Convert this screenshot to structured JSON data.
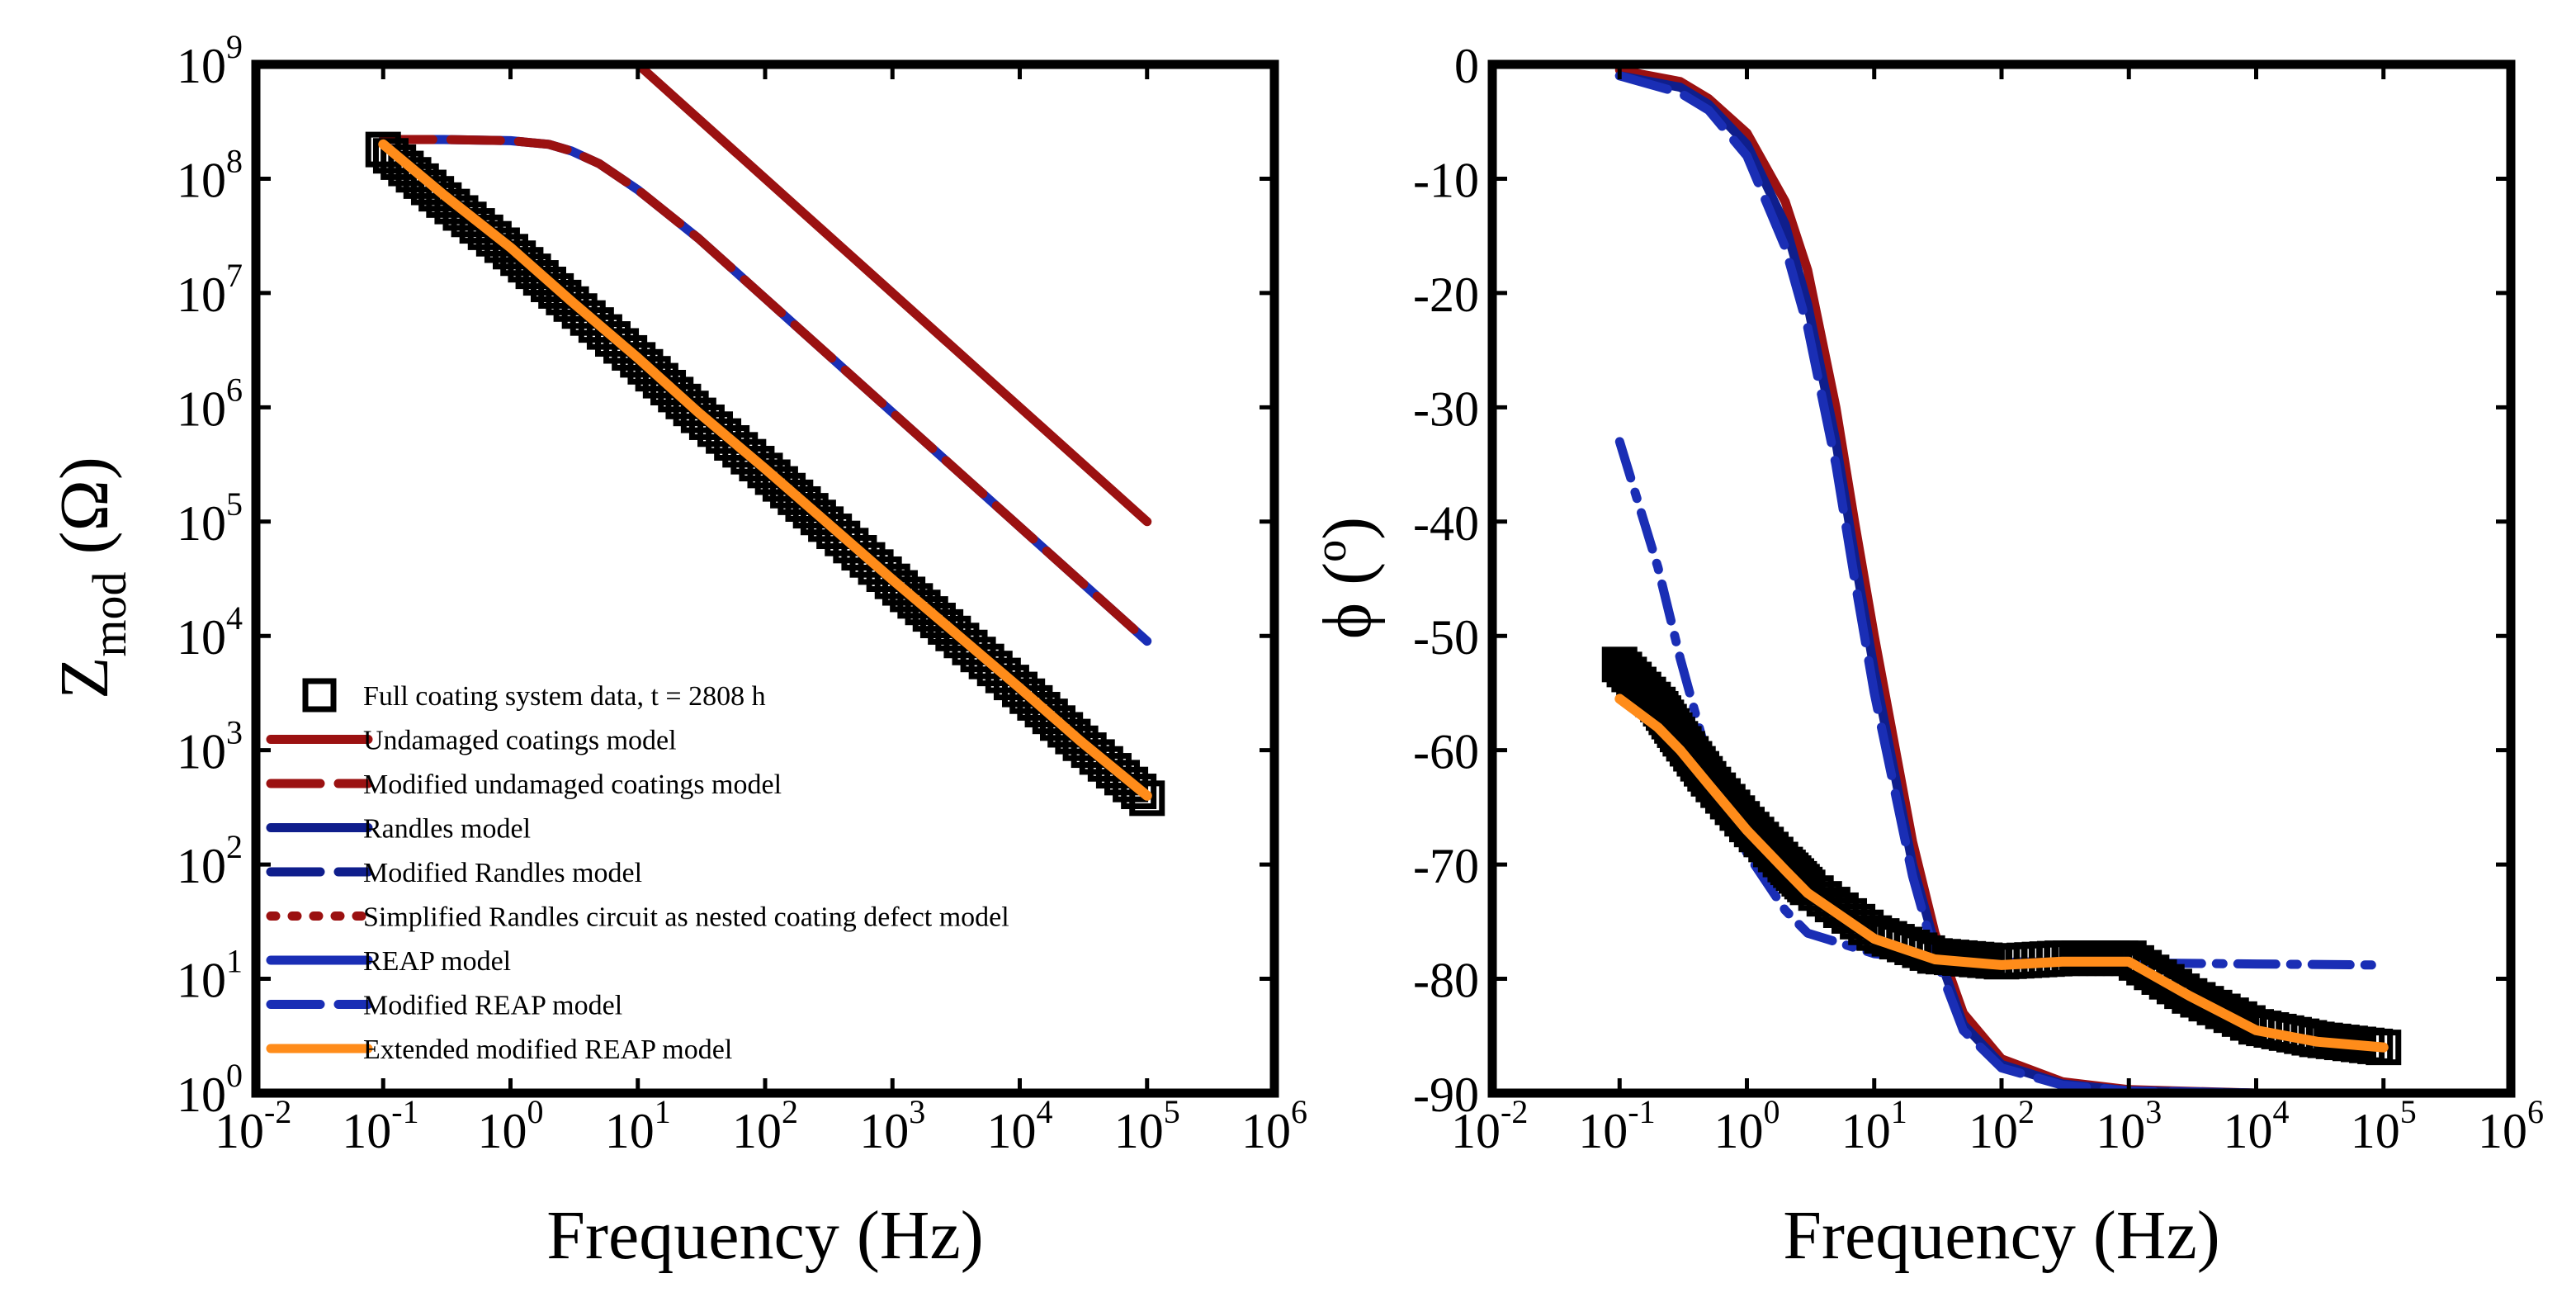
{
  "chart_data": [
    {
      "type": "line",
      "xlabel": "Frequency (Hz)",
      "ylabel": "Z_mod (Ω)",
      "ylabel_main": "Z",
      "ylabel_sub": "mod",
      "ylabel_unit": "(Ω)",
      "x_scale": "log",
      "y_scale": "log",
      "xlim": [
        0.01,
        1000000
      ],
      "ylim": [
        1,
        1000000000
      ],
      "x_ticks": [
        {
          "base": "10",
          "exp": "-2"
        },
        {
          "base": "10",
          "exp": "-1"
        },
        {
          "base": "10",
          "exp": "0"
        },
        {
          "base": "10",
          "exp": "1"
        },
        {
          "base": "10",
          "exp": "2"
        },
        {
          "base": "10",
          "exp": "3"
        },
        {
          "base": "10",
          "exp": "4"
        },
        {
          "base": "10",
          "exp": "5"
        },
        {
          "base": "10",
          "exp": "6"
        }
      ],
      "y_ticks": [
        {
          "base": "10",
          "exp": "0"
        },
        {
          "base": "10",
          "exp": "1"
        },
        {
          "base": "10",
          "exp": "2"
        },
        {
          "base": "10",
          "exp": "3"
        },
        {
          "base": "10",
          "exp": "4"
        },
        {
          "base": "10",
          "exp": "5"
        },
        {
          "base": "10",
          "exp": "6"
        },
        {
          "base": "10",
          "exp": "7"
        },
        {
          "base": "10",
          "exp": "8"
        },
        {
          "base": "10",
          "exp": "9"
        }
      ],
      "grid": false,
      "legend_position": "bottom-left",
      "legend": [
        {
          "label": "Full coating system data, t = 2808 h",
          "color": "#000000",
          "style": "square-marker"
        },
        {
          "label": "Undamaged coatings model",
          "color": "#9b1111",
          "style": "solid"
        },
        {
          "label": "Modified undamaged coatings model",
          "color": "#9b1111",
          "style": "dashed"
        },
        {
          "label": "Randles model",
          "color": "#0f1e8c",
          "style": "solid"
        },
        {
          "label": "Modified Randles model",
          "color": "#0f1e8c",
          "style": "dashed"
        },
        {
          "label": "Simplified Randles circuit as nested coating defect model",
          "color": "#9b1111",
          "style": "dotted"
        },
        {
          "label": "REAP model",
          "color": "#1a2eb5",
          "style": "solid"
        },
        {
          "label": "Modified REAP model",
          "color": "#1a2eb5",
          "style": "dashed"
        },
        {
          "label": "Extended modified REAP model",
          "color": "#ff8c1a",
          "style": "solid"
        }
      ],
      "series": [
        {
          "name": "Undamaged coatings model",
          "color": "#9b1111",
          "style": "solid",
          "x": [
            6.3,
            10,
            100,
            1000,
            10000,
            100000
          ],
          "y": [
            1600000000,
            1000000000,
            100000000,
            10000000,
            1000000,
            100000
          ]
        },
        {
          "name": "Randles model",
          "color": "#1a2eb5",
          "style": "solid",
          "x": [
            0.1,
            0.3,
            1,
            2,
            3,
            5,
            10,
            30,
            100,
            1000,
            10000,
            100000
          ],
          "y": [
            220000000,
            220000000,
            215000000,
            200000000,
            175000000,
            135000000,
            80000000,
            30000000,
            9000000,
            900000,
            90000,
            9000
          ]
        },
        {
          "name": "Modified undamaged coatings model",
          "color": "#9b1111",
          "style": "dashed",
          "x": [
            0.1,
            0.3,
            1,
            2,
            3,
            5,
            10,
            30,
            100,
            1000,
            10000,
            100000
          ],
          "y": [
            220000000,
            220000000,
            215000000,
            200000000,
            175000000,
            135000000,
            80000000,
            30000000,
            9000000,
            900000,
            90000,
            9000
          ]
        },
        {
          "name": "Extended modified REAP model",
          "color": "#ff8c1a",
          "style": "solid",
          "x": [
            0.1,
            0.3,
            1,
            3,
            10,
            30,
            100,
            300,
            1000,
            3000,
            10000,
            30000,
            100000
          ],
          "y": [
            200000000,
            72000000,
            25000000,
            8500000,
            2700000,
            900000,
            290000,
            100000,
            31000,
            11000,
            3500,
            1200,
            400
          ]
        },
        {
          "name": "Full coating system data, t = 2808 h",
          "color": "#000000",
          "style": "square-marker",
          "x": [
            0.1,
            0.3,
            1,
            3,
            10,
            30,
            100,
            300,
            1000,
            3000,
            10000,
            30000,
            100000
          ],
          "y": [
            180000000,
            65000000,
            23000000,
            8000000,
            2600000,
            850000,
            280000,
            95000,
            30000,
            10500,
            3400,
            1150,
            380
          ]
        }
      ]
    },
    {
      "type": "line",
      "xlabel": "Frequency (Hz)",
      "ylabel": "ϕ (°)",
      "ylabel_main": "ϕ",
      "ylabel_unit_open": "(",
      "ylabel_unit_sup": "o",
      "ylabel_unit_close": ")",
      "x_scale": "log",
      "y_scale": "linear",
      "xlim": [
        0.01,
        1000000
      ],
      "ylim": [
        -90,
        0
      ],
      "x_ticks": [
        {
          "base": "10",
          "exp": "-2"
        },
        {
          "base": "10",
          "exp": "-1"
        },
        {
          "base": "10",
          "exp": "0"
        },
        {
          "base": "10",
          "exp": "1"
        },
        {
          "base": "10",
          "exp": "2"
        },
        {
          "base": "10",
          "exp": "3"
        },
        {
          "base": "10",
          "exp": "4"
        },
        {
          "base": "10",
          "exp": "5"
        },
        {
          "base": "10",
          "exp": "6"
        }
      ],
      "y_ticks": [
        "0",
        "-10",
        "-20",
        "-30",
        "-40",
        "-50",
        "-60",
        "-70",
        "-80",
        "-90"
      ],
      "grid": false,
      "series": [
        {
          "name": "Undamaged coatings model",
          "color": "#9b1111",
          "style": "solid",
          "x": [
            0.1,
            0.3,
            0.5,
            1,
            2,
            3,
            5,
            7,
            10,
            20,
            30,
            50,
            100,
            300,
            1000,
            10000,
            100000
          ],
          "y": [
            -0.5,
            -1.5,
            -3,
            -6,
            -12,
            -18,
            -30,
            -40,
            -50,
            -68,
            -76,
            -83,
            -87,
            -89,
            -89.7,
            -90,
            -90
          ]
        },
        {
          "name": "Randles model",
          "color": "#0f1e8c",
          "style": "solid",
          "x": [
            0.1,
            0.3,
            0.5,
            1,
            2,
            3,
            5,
            7,
            10,
            20,
            30,
            50,
            100,
            300,
            1000,
            10000,
            100000
          ],
          "y": [
            -1,
            -2,
            -3.5,
            -7,
            -14,
            -21,
            -33,
            -43,
            -53,
            -70,
            -77,
            -84,
            -87.5,
            -89.2,
            -89.8,
            -90,
            -90
          ]
        },
        {
          "name": "Modified Randles model",
          "color": "#1a2eb5",
          "style": "dashed",
          "x": [
            0.1,
            0.3,
            0.5,
            1,
            2,
            3,
            5,
            7,
            10,
            20,
            30,
            50,
            100,
            300,
            1000,
            10000,
            100000
          ],
          "y": [
            -1,
            -2.5,
            -4,
            -8,
            -16,
            -23,
            -35,
            -45,
            -55,
            -71,
            -78,
            -84.5,
            -87.8,
            -89.3,
            -89.8,
            -90,
            -90
          ]
        },
        {
          "name": "Modified REAP model",
          "color": "#1a2eb5",
          "style": "dashdot",
          "x": [
            0.1,
            0.2,
            0.3,
            0.5,
            1,
            2,
            3,
            10,
            30,
            100,
            1000,
            10000,
            100000
          ],
          "y": [
            -33,
            -44,
            -52,
            -61,
            -69,
            -74,
            -76,
            -77.8,
            -78.3,
            -78.5,
            -78.6,
            -78.7,
            -78.8
          ]
        },
        {
          "name": "Full coating system data, t = 2808 h",
          "color": "#000000",
          "style": "square-marker",
          "x": [
            0.1,
            0.2,
            0.3,
            0.5,
            1,
            2,
            3,
            10,
            30,
            100,
            300,
            1000,
            3000,
            10000,
            30000,
            100000
          ],
          "y": [
            -52.5,
            -56,
            -59,
            -62.5,
            -66.5,
            -70,
            -72,
            -76,
            -78,
            -78.5,
            -78.2,
            -78.2,
            -81.5,
            -84.2,
            -85.3,
            -86
          ]
        },
        {
          "name": "Extended modified REAP model",
          "color": "#ff8c1a",
          "style": "solid",
          "x": [
            0.1,
            0.2,
            0.3,
            0.5,
            1,
            2,
            3,
            10,
            30,
            100,
            300,
            1000,
            3000,
            10000,
            30000,
            100000
          ],
          "y": [
            -55.5,
            -58,
            -60,
            -63,
            -67,
            -70.5,
            -72.5,
            -76.5,
            -78.3,
            -78.8,
            -78.5,
            -78.5,
            -81.5,
            -84.5,
            -85.5,
            -86
          ]
        }
      ]
    }
  ]
}
